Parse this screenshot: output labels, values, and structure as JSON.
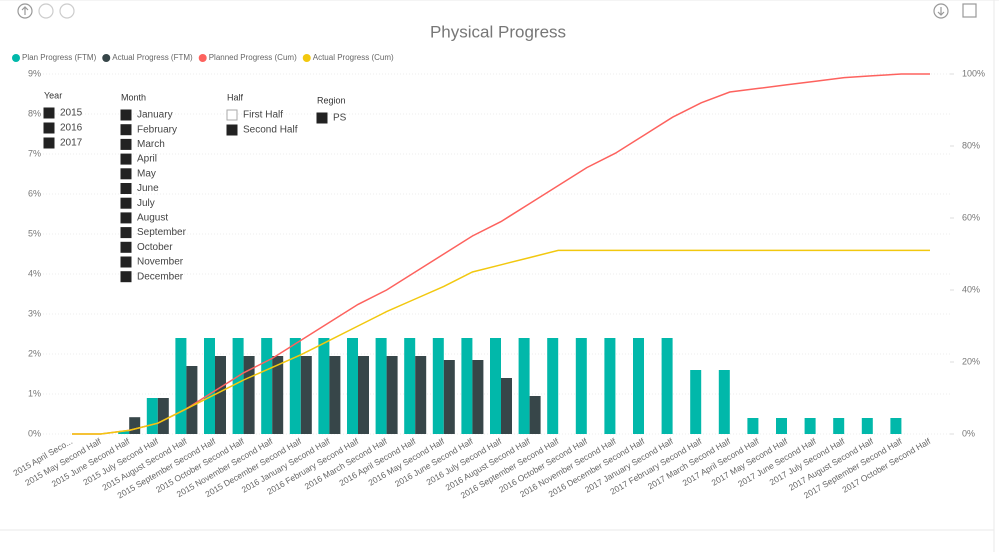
{
  "chart_data": {
    "type": "bar-line-combo",
    "title": "Physical Progress",
    "categories": [
      "2015 April Seco...",
      "2015 May Second Half",
      "2015 June Second Half",
      "2015 July Second Half",
      "2015 August Second Half",
      "2015 September Second Half",
      "2015 October Second Half",
      "2015 November Second Half",
      "2015 December Second Half",
      "2016 January Second Half",
      "2016 February Second Half",
      "2016 March Second Half",
      "2016 April Second Half",
      "2016 May Second Half",
      "2016 June Second Half",
      "2016 July Second Half",
      "2016 August Second Half",
      "2016 September Second Half",
      "2016 October Second Half",
      "2016 November Second Half",
      "2016 December Second Half",
      "2017 January Second Half",
      "2017 February Second Half",
      "2017 March Second Half",
      "2017 April Second Half",
      "2017 May Second Half",
      "2017 June Second Half",
      "2017 July Second Half",
      "2017 August Second Half",
      "2017 September Second Half",
      "2017 October Second Half"
    ],
    "series": [
      {
        "name": "Plan Progress (FTM)",
        "color": "#01b8aa",
        "kind": "bar",
        "values": [
          0,
          0,
          0.07,
          0.9,
          2.4,
          2.4,
          2.4,
          2.4,
          2.4,
          2.4,
          2.4,
          2.4,
          2.4,
          2.4,
          2.4,
          2.4,
          2.4,
          2.4,
          2.4,
          2.4,
          2.4,
          2.4,
          1.6,
          1.6,
          0.4,
          0.4,
          0.4,
          0.4,
          0.4,
          0.4,
          0
        ]
      },
      {
        "name": "Actual Progress (FTM)",
        "color": "#374649",
        "kind": "bar",
        "values": [
          null,
          null,
          0.42,
          0.9,
          1.7,
          1.95,
          1.95,
          1.95,
          1.95,
          1.95,
          1.95,
          1.95,
          1.95,
          1.85,
          1.85,
          1.4,
          0.95,
          null,
          null,
          null,
          null,
          null,
          null,
          null,
          null,
          null,
          null,
          null,
          null,
          null,
          null
        ]
      },
      {
        "name": "Planned Progress (Cum)",
        "color": "#fd625e",
        "kind": "line",
        "axis": "y2",
        "values": [
          0,
          0,
          1,
          3,
          7,
          12,
          17,
          21,
          26,
          31,
          36,
          40,
          45,
          50,
          55,
          59,
          64,
          69,
          74,
          78,
          83,
          88,
          92,
          95,
          96,
          97,
          98,
          99,
          99.5,
          100,
          100
        ]
      },
      {
        "name": "Actual Progress (Cum)",
        "color": "#f2c80f",
        "kind": "line",
        "axis": "y2",
        "values": [
          0,
          0,
          1,
          3,
          7,
          11,
          15,
          18.5,
          22,
          26,
          30,
          34,
          37.5,
          41,
          45,
          47,
          49,
          51,
          51,
          51,
          51,
          51,
          51,
          51,
          51,
          51,
          51,
          51,
          51,
          51,
          51
        ]
      }
    ],
    "ylim": [
      0,
      9
    ],
    "yticks": [
      {
        "value": 0,
        "label": "0%"
      },
      {
        "value": 1,
        "label": "1%"
      },
      {
        "value": 2,
        "label": "2%"
      },
      {
        "value": 3,
        "label": "3%"
      },
      {
        "value": 4,
        "label": "4%"
      },
      {
        "value": 5,
        "label": "5%"
      },
      {
        "value": 6,
        "label": "6%"
      },
      {
        "value": 7,
        "label": "7%"
      },
      {
        "value": 8,
        "label": "8%"
      },
      {
        "value": 9,
        "label": "9%"
      }
    ],
    "y2lim": [
      0,
      100
    ],
    "y2ticks": [
      {
        "value": 0,
        "label": "0%"
      },
      {
        "value": 20,
        "label": "20%"
      },
      {
        "value": 40,
        "label": "40%"
      },
      {
        "value": 60,
        "label": "60%"
      },
      {
        "value": 80,
        "label": "80%"
      },
      {
        "value": 100,
        "label": "100%"
      }
    ],
    "grid": true,
    "legend": "top-left"
  },
  "slicers": [
    {
      "title": "Year",
      "items": [
        {
          "label": "2015",
          "selected": true
        },
        {
          "label": "2016",
          "selected": true
        },
        {
          "label": "2017",
          "selected": true
        }
      ]
    },
    {
      "title": "Month",
      "items": [
        {
          "label": "January",
          "selected": true
        },
        {
          "label": "February",
          "selected": true
        },
        {
          "label": "March",
          "selected": true
        },
        {
          "label": "April",
          "selected": true
        },
        {
          "label": "May",
          "selected": true
        },
        {
          "label": "June",
          "selected": true
        },
        {
          "label": "July",
          "selected": true
        },
        {
          "label": "August",
          "selected": true
        },
        {
          "label": "September",
          "selected": true
        },
        {
          "label": "October",
          "selected": true
        },
        {
          "label": "November",
          "selected": true
        },
        {
          "label": "December",
          "selected": true
        }
      ]
    },
    {
      "title": "Half",
      "items": [
        {
          "label": "First Half",
          "selected": false
        },
        {
          "label": "Second Half",
          "selected": true
        }
      ]
    },
    {
      "title": "Region",
      "items": [
        {
          "label": "PS",
          "selected": true
        }
      ]
    }
  ]
}
